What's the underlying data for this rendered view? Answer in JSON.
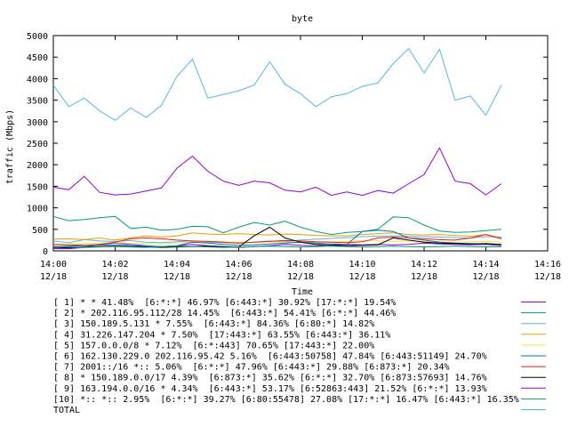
{
  "chart_data": {
    "type": "line",
    "title": "byte",
    "xlabel": "Time",
    "ylabel": "traffic (Mbps)",
    "ylim": [
      0,
      5000
    ],
    "yticks": [
      0,
      500,
      1000,
      1500,
      2000,
      2500,
      3000,
      3500,
      4000,
      4500,
      5000
    ],
    "xlim": [
      0,
      16
    ],
    "xticks": [
      {
        "v": 0,
        "time": "14:00",
        "date": "12/18"
      },
      {
        "v": 2,
        "time": "14:02",
        "date": "12/18"
      },
      {
        "v": 4,
        "time": "14:04",
        "date": "12/18"
      },
      {
        "v": 6,
        "time": "14:06",
        "date": "12/18"
      },
      {
        "v": 8,
        "time": "14:08",
        "date": "12/18"
      },
      {
        "v": 10,
        "time": "14:10",
        "date": "12/18"
      },
      {
        "v": 12,
        "time": "14:12",
        "date": "12/18"
      },
      {
        "v": 14,
        "time": "14:14",
        "date": "12/18"
      },
      {
        "v": 16,
        "time": "14:16",
        "date": "12/18"
      }
    ],
    "grid": false,
    "legend_placement": "bottom",
    "x": [
      0,
      0.5,
      1,
      1.5,
      2,
      2.5,
      3,
      3.5,
      4,
      4.5,
      5,
      5.5,
      6,
      6.5,
      7,
      7.5,
      8,
      8.5,
      9,
      9.5,
      10,
      10.5,
      11,
      11.5,
      12,
      12.5,
      13,
      13.5,
      14,
      14.5
    ],
    "series": [
      {
        "name": "[ 1] * * 41.48%  [6:*:*] 46.97% [6:443:*] 30.92% [17:*:*] 19.54%",
        "color": "#9400d3",
        "values": [
          50,
          50,
          80,
          150,
          180,
          150,
          120,
          100,
          120,
          150,
          120,
          100,
          80,
          100,
          120,
          150,
          130,
          120,
          140,
          150,
          140,
          150,
          140,
          150,
          180,
          160,
          150,
          140,
          150,
          120
        ]
      },
      {
        "name": "[ 2] * 202.116.95.112/28 14.45%  [6:443:*] 54.41% [6:*:*] 44.46%",
        "color": "#009e73",
        "values": [
          800,
          700,
          730,
          770,
          800,
          520,
          550,
          480,
          500,
          570,
          560,
          420,
          550,
          660,
          600,
          690,
          550,
          450,
          380,
          430,
          450,
          500,
          790,
          770,
          600,
          460,
          430,
          440,
          470,
          500
        ]
      },
      {
        "name": "[ 3] 150.189.5.131 * 7.55%  [6:443:*] 84.36% [6:80:*] 14.82%",
        "color": "#56b4e9",
        "values": [
          230,
          190,
          260,
          230,
          220,
          240,
          200,
          190,
          210,
          230,
          200,
          190,
          180,
          200,
          230,
          210,
          250,
          270,
          290,
          310,
          330,
          340,
          350,
          340,
          330,
          320,
          310,
          300,
          330,
          320
        ]
      },
      {
        "name": "[ 4] 31.226.147.204 * 7.50%  [17:443:*] 63.55% [6:443:*] 36.11%",
        "color": "#e69f00",
        "values": [
          270,
          280,
          260,
          300,
          250,
          300,
          350,
          320,
          350,
          420,
          390,
          380,
          400,
          380,
          370,
          390,
          380,
          360,
          350,
          350,
          380,
          400,
          420,
          380,
          370,
          380,
          360,
          340,
          380,
          300
        ]
      },
      {
        "name": "[ 5] 157.0.0.0/8 * 7.12%  [6:*:443] 70.65% [17:443:*] 22.00%",
        "color": "#f0e442",
        "values": [
          150,
          160,
          170,
          180,
          190,
          180,
          170,
          160,
          180,
          200,
          220,
          210,
          200,
          190,
          210,
          200,
          190,
          200,
          210,
          220,
          240,
          230,
          220,
          230,
          220,
          210,
          200,
          210,
          220,
          200
        ]
      },
      {
        "name": "[ 6] 162.130.229.0 202.116.95.42 5.16%  [6:443:50758] 47.84% [6:443:51149] 24.70%",
        "color": "#0072b2",
        "values": [
          100,
          110,
          120,
          130,
          140,
          120,
          110,
          100,
          120,
          200,
          180,
          150,
          130,
          140,
          160,
          180,
          200,
          180,
          160,
          150,
          450,
          480,
          450,
          300,
          250,
          200,
          180,
          170,
          160,
          150
        ]
      },
      {
        "name": "[ 7] 2001::/16 *:: 5.06%  [6:*:*] 47.96% [6:443:*] 29.88% [6:873:*] 20.34%",
        "color": "#e51e10",
        "values": [
          150,
          140,
          130,
          150,
          200,
          280,
          300,
          280,
          250,
          230,
          220,
          200,
          180,
          200,
          220,
          240,
          230,
          210,
          200,
          190,
          210,
          300,
          320,
          300,
          280,
          260,
          250,
          300,
          380,
          280
        ]
      },
      {
        "name": "[ 8] * 150.189.0.0/17 4.39%  [6:873:*] 35.62% [6:*:*] 32.70% [6:873:57693] 14.76%",
        "color": "#000000",
        "values": [
          80,
          70,
          90,
          100,
          110,
          100,
          90,
          80,
          90,
          100,
          110,
          100,
          90,
          350,
          550,
          300,
          200,
          150,
          130,
          120,
          130,
          140,
          300,
          250,
          200,
          180,
          170,
          160,
          170,
          150
        ]
      },
      {
        "name": "[ 9] 163.194.0.0/16 * 4.34%  [6:443:*] 53.17% [6:52863:443] 21.52% [6:*:*] 13.93%",
        "color": "#9400d3",
        "values": [
          1480,
          1420,
          1730,
          1360,
          1300,
          1320,
          1390,
          1460,
          1920,
          2200,
          1850,
          1620,
          1520,
          1620,
          1580,
          1410,
          1370,
          1480,
          1290,
          1370,
          1290,
          1400,
          1340,
          1560,
          1770,
          2390,
          1620,
          1560,
          1300,
          1560
        ]
      },
      {
        "name": "[10] *:: *:: 2.95%  [6:*:*] 39.27% [6:80:55478] 27.08% [17:*:*] 16.47% [6:443:*] 16.35%",
        "color": "#009e73",
        "values": [
          100,
          90,
          80,
          90,
          100,
          90,
          80,
          100,
          110,
          100,
          90,
          80,
          90,
          100,
          110,
          100,
          90,
          100,
          110,
          100,
          90,
          100,
          110,
          100,
          90,
          100,
          110,
          100,
          90,
          100
        ]
      },
      {
        "name": "TOTAL",
        "color": "#56b4e9",
        "values": [
          3850,
          3350,
          3550,
          3250,
          3030,
          3320,
          3100,
          3380,
          4050,
          4450,
          3550,
          3630,
          3720,
          3850,
          4390,
          3870,
          3650,
          3350,
          3580,
          3650,
          3820,
          3900,
          4350,
          4700,
          4130,
          4680,
          3500,
          3600,
          3150,
          3850
        ]
      }
    ]
  }
}
